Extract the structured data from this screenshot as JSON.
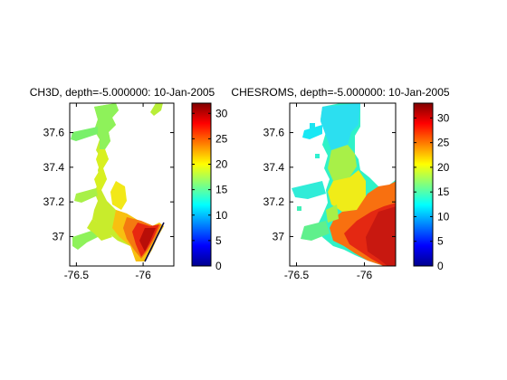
{
  "chart_data": [
    {
      "type": "heatmap",
      "title": "CH3D, depth=-5.000000: 10-Jan-2005",
      "xlabel": "",
      "ylabel": "",
      "xlim": [
        -76.55,
        -75.77
      ],
      "ylim": [
        36.83,
        37.77
      ],
      "x_ticks": [
        -76.5,
        -76
      ],
      "x_tick_labels": [
        "-76.5",
        "-76"
      ],
      "y_ticks": [
        37,
        37.2,
        37.4,
        37.6
      ],
      "y_tick_labels": [
        "37",
        "37.2",
        "37.4",
        "37.6"
      ],
      "colorbar": {
        "min": 0,
        "max": 32,
        "ticks": [
          0,
          5,
          10,
          15,
          20,
          25,
          30
        ],
        "tick_labels": [
          "0",
          "5",
          "10",
          "15",
          "20",
          "25",
          "30"
        ],
        "colormap": "jet"
      },
      "field": "salinity-like scalar; ~14 in upper bay, ~20 mid bay, ~30+ near mouth",
      "grid": false
    },
    {
      "type": "heatmap",
      "title": "CHESROMS, depth=-5.000000: 10-Jan-2005",
      "xlabel": "",
      "ylabel": "",
      "xlim": [
        -76.55,
        -75.77
      ],
      "ylim": [
        36.83,
        37.77
      ],
      "x_ticks": [
        -76.5,
        -76
      ],
      "x_tick_labels": [
        "-76.5",
        "-76"
      ],
      "y_ticks": [
        37,
        37.2,
        37.4,
        37.6
      ],
      "y_tick_labels": [
        "37",
        "37.2",
        "37.4",
        "37.6"
      ],
      "colorbar": {
        "min": 0,
        "max": 33,
        "ticks": [
          0,
          5,
          10,
          15,
          20,
          25,
          30
        ],
        "tick_labels": [
          "0",
          "5",
          "10",
          "15",
          "20",
          "25",
          "30"
        ],
        "colormap": "jet"
      },
      "field": "salinity-like scalar; ~13 in upper bay, ~20 mid bay, ~31 near mouth",
      "grid": false
    }
  ]
}
